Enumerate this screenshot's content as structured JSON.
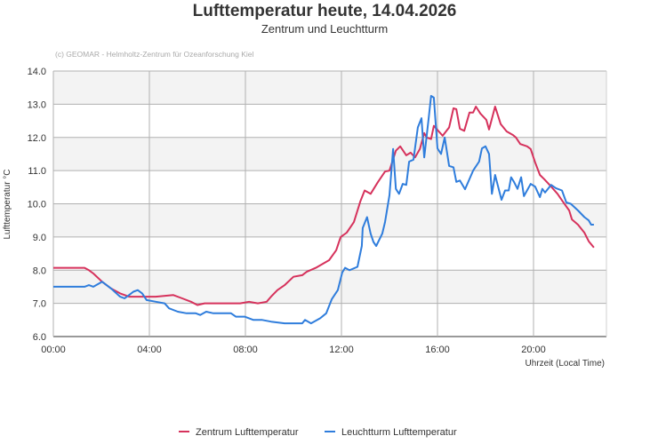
{
  "chart_data": {
    "type": "line",
    "title": "Lufttemperatur heute, 14.04.2026",
    "subtitle": "Zentrum und Leuchtturm",
    "credit": "(c) GEOMAR - Helmholtz-Zentrum für Ozeanforschung Kiel",
    "xlabel": "Uhrzeit (Local Time)",
    "ylabel": "Lufttemperatur °C",
    "xlim": [
      "00:00",
      "23:00"
    ],
    "ylim": [
      6.0,
      14.0
    ],
    "xticks": [
      "00:00",
      "04:00",
      "08:00",
      "12:00",
      "16:00",
      "20:00"
    ],
    "yticks": [
      "6.0",
      "7.0",
      "8.0",
      "9.0",
      "10.0",
      "11.0",
      "12.0",
      "13.0",
      "14.0"
    ],
    "grid": true,
    "alternating_bands": true,
    "legend_position": "bottom",
    "series": [
      {
        "name": "Zentrum Lufttemperatur",
        "color": "#d6325c",
        "points": [
          [
            "00:00",
            8.07
          ],
          [
            "01:18",
            8.07
          ],
          [
            "01:29",
            8.0
          ],
          [
            "01:40",
            7.9
          ],
          [
            "02:02",
            7.65
          ],
          [
            "02:24",
            7.45
          ],
          [
            "02:47",
            7.3
          ],
          [
            "03:09",
            7.2
          ],
          [
            "03:42",
            7.2
          ],
          [
            "04:16",
            7.2
          ],
          [
            "05:00",
            7.25
          ],
          [
            "05:22",
            7.15
          ],
          [
            "05:44",
            7.05
          ],
          [
            "06:00",
            6.95
          ],
          [
            "06:18",
            7.0
          ],
          [
            "07:02",
            7.0
          ],
          [
            "07:47",
            7.0
          ],
          [
            "08:09",
            7.05
          ],
          [
            "08:31",
            7.0
          ],
          [
            "08:53",
            7.05
          ],
          [
            "09:04",
            7.2
          ],
          [
            "09:20",
            7.4
          ],
          [
            "09:38",
            7.55
          ],
          [
            "10:00",
            7.8
          ],
          [
            "10:22",
            7.85
          ],
          [
            "10:33",
            7.95
          ],
          [
            "10:56",
            8.07
          ],
          [
            "11:29",
            8.3
          ],
          [
            "11:47",
            8.6
          ],
          [
            "11:58",
            9.0
          ],
          [
            "12:13",
            9.13
          ],
          [
            "12:31",
            9.45
          ],
          [
            "12:47",
            10.07
          ],
          [
            "12:58",
            10.4
          ],
          [
            "13:13",
            10.3
          ],
          [
            "13:31",
            10.65
          ],
          [
            "13:49",
            10.97
          ],
          [
            "14:00",
            11.0
          ],
          [
            "14:16",
            11.6
          ],
          [
            "14:27",
            11.73
          ],
          [
            "14:42",
            11.46
          ],
          [
            "14:53",
            11.54
          ],
          [
            "15:04",
            11.4
          ],
          [
            "15:16",
            11.65
          ],
          [
            "15:27",
            12.13
          ],
          [
            "15:33",
            12.0
          ],
          [
            "15:44",
            11.95
          ],
          [
            "15:51",
            12.35
          ],
          [
            "16:13",
            12.05
          ],
          [
            "16:29",
            12.3
          ],
          [
            "16:40",
            12.88
          ],
          [
            "16:47",
            12.85
          ],
          [
            "16:56",
            12.26
          ],
          [
            "17:07",
            12.2
          ],
          [
            "17:20",
            12.75
          ],
          [
            "17:29",
            12.75
          ],
          [
            "17:36",
            12.93
          ],
          [
            "17:47",
            12.72
          ],
          [
            "18:02",
            12.53
          ],
          [
            "18:09",
            12.24
          ],
          [
            "18:24",
            12.93
          ],
          [
            "18:38",
            12.4
          ],
          [
            "18:53",
            12.18
          ],
          [
            "19:09",
            12.07
          ],
          [
            "19:16",
            12.0
          ],
          [
            "19:27",
            11.8
          ],
          [
            "19:44",
            11.73
          ],
          [
            "19:53",
            11.65
          ],
          [
            "20:04",
            11.25
          ],
          [
            "20:16",
            10.87
          ],
          [
            "20:27",
            10.74
          ],
          [
            "20:44",
            10.52
          ],
          [
            "21:00",
            10.3
          ],
          [
            "21:13",
            10.07
          ],
          [
            "21:29",
            9.8
          ],
          [
            "21:36",
            9.53
          ],
          [
            "21:51",
            9.37
          ],
          [
            "22:07",
            9.13
          ],
          [
            "22:18",
            8.87
          ],
          [
            "22:31",
            8.68
          ]
        ]
      },
      {
        "name": "Leuchtturm Lufttemperatur",
        "color": "#2f7ddc",
        "points": [
          [
            "00:00",
            7.5
          ],
          [
            "01:18",
            7.5
          ],
          [
            "01:29",
            7.55
          ],
          [
            "01:40",
            7.5
          ],
          [
            "02:02",
            7.65
          ],
          [
            "02:24",
            7.45
          ],
          [
            "02:47",
            7.2
          ],
          [
            "02:58",
            7.15
          ],
          [
            "03:09",
            7.25
          ],
          [
            "03:20",
            7.35
          ],
          [
            "03:31",
            7.4
          ],
          [
            "03:42",
            7.3
          ],
          [
            "03:53",
            7.1
          ],
          [
            "04:16",
            7.05
          ],
          [
            "04:38",
            7.0
          ],
          [
            "04:49",
            6.85
          ],
          [
            "05:11",
            6.75
          ],
          [
            "05:33",
            6.7
          ],
          [
            "05:56",
            6.7
          ],
          [
            "06:07",
            6.65
          ],
          [
            "06:22",
            6.75
          ],
          [
            "06:40",
            6.7
          ],
          [
            "07:24",
            6.7
          ],
          [
            "07:36",
            6.6
          ],
          [
            "07:58",
            6.6
          ],
          [
            "08:20",
            6.5
          ],
          [
            "08:42",
            6.5
          ],
          [
            "09:04",
            6.45
          ],
          [
            "09:38",
            6.4
          ],
          [
            "10:22",
            6.4
          ],
          [
            "10:29",
            6.5
          ],
          [
            "10:44",
            6.4
          ],
          [
            "11:07",
            6.55
          ],
          [
            "11:22",
            6.7
          ],
          [
            "11:36",
            7.13
          ],
          [
            "11:51",
            7.4
          ],
          [
            "12:02",
            7.93
          ],
          [
            "12:09",
            8.07
          ],
          [
            "12:20",
            8.0
          ],
          [
            "12:40",
            8.1
          ],
          [
            "12:51",
            8.73
          ],
          [
            "12:53",
            9.27
          ],
          [
            "13:04",
            9.6
          ],
          [
            "13:13",
            9.1
          ],
          [
            "13:20",
            8.85
          ],
          [
            "13:27",
            8.73
          ],
          [
            "13:42",
            9.1
          ],
          [
            "13:49",
            9.45
          ],
          [
            "14:00",
            10.26
          ],
          [
            "14:09",
            11.65
          ],
          [
            "14:16",
            10.45
          ],
          [
            "14:24",
            10.3
          ],
          [
            "14:33",
            10.6
          ],
          [
            "14:42",
            10.57
          ],
          [
            "14:49",
            11.27
          ],
          [
            "15:00",
            11.33
          ],
          [
            "15:11",
            12.3
          ],
          [
            "15:20",
            12.58
          ],
          [
            "15:27",
            11.4
          ],
          [
            "15:38",
            12.58
          ],
          [
            "15:44",
            13.25
          ],
          [
            "15:51",
            13.2
          ],
          [
            "16:00",
            11.67
          ],
          [
            "16:09",
            11.5
          ],
          [
            "16:18",
            12.0
          ],
          [
            "16:29",
            11.14
          ],
          [
            "16:40",
            11.1
          ],
          [
            "16:47",
            10.66
          ],
          [
            "16:56",
            10.7
          ],
          [
            "17:09",
            10.44
          ],
          [
            "17:29",
            11.0
          ],
          [
            "17:44",
            11.27
          ],
          [
            "17:51",
            11.67
          ],
          [
            "18:00",
            11.73
          ],
          [
            "18:09",
            11.5
          ],
          [
            "18:16",
            10.3
          ],
          [
            "18:24",
            10.87
          ],
          [
            "18:40",
            10.12
          ],
          [
            "18:49",
            10.4
          ],
          [
            "18:58",
            10.4
          ],
          [
            "19:04",
            10.8
          ],
          [
            "19:11",
            10.66
          ],
          [
            "19:20",
            10.45
          ],
          [
            "19:29",
            10.8
          ],
          [
            "19:36",
            10.23
          ],
          [
            "19:53",
            10.6
          ],
          [
            "20:04",
            10.52
          ],
          [
            "20:16",
            10.2
          ],
          [
            "20:22",
            10.45
          ],
          [
            "20:29",
            10.34
          ],
          [
            "20:44",
            10.57
          ],
          [
            "20:56",
            10.47
          ],
          [
            "21:11",
            10.4
          ],
          [
            "21:22",
            10.04
          ],
          [
            "21:33",
            10.0
          ],
          [
            "21:51",
            9.8
          ],
          [
            "22:07",
            9.6
          ],
          [
            "22:18",
            9.5
          ],
          [
            "22:24",
            9.37
          ],
          [
            "22:31",
            9.37
          ]
        ]
      }
    ]
  }
}
